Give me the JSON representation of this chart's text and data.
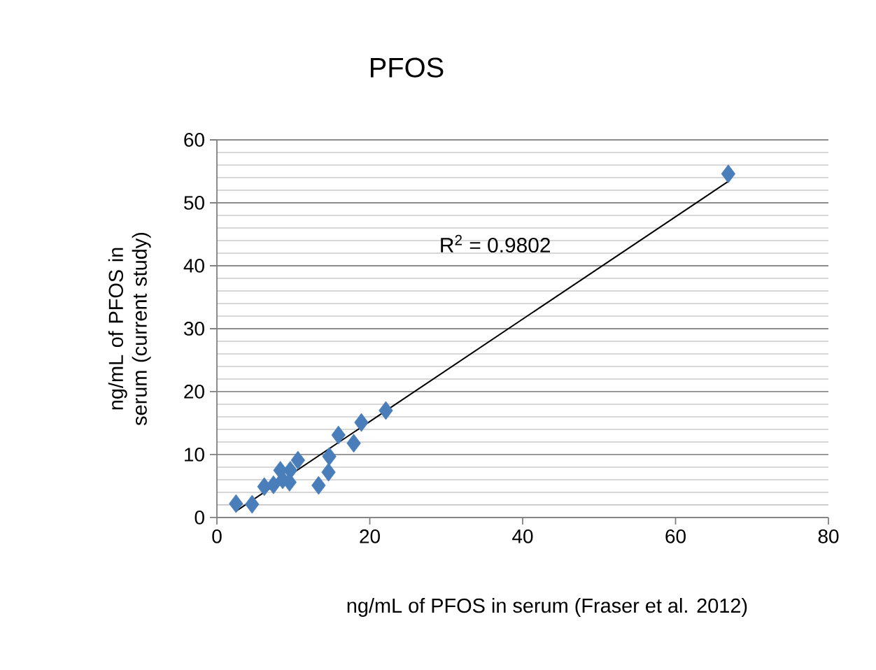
{
  "chart_data": {
    "type": "scatter",
    "title": "PFOS",
    "xlabel": "ng/mL of PFOS in serum (Fraser et al. 2012)",
    "ylabel": "ng/mL of PFOS in serum (current study)",
    "series": [
      {
        "type": "scatter",
        "color": "#4a7ebb",
        "marker": "diamond",
        "x": [
          2.5,
          4.6,
          6.2,
          7.4,
          8.3,
          8.6,
          9.5,
          9.6,
          10.6,
          13.3,
          14.6,
          14.7,
          15.9,
          17.9,
          18.9,
          22.1,
          66.9
        ],
        "values": [
          2.2,
          2.1,
          4.9,
          5.2,
          7.5,
          6.0,
          5.6,
          7.5,
          9.1,
          5.1,
          7.2,
          9.7,
          13.1,
          11.8,
          15.1,
          17.0,
          54.6
        ]
      },
      {
        "type": "line",
        "color": "#000000",
        "marker": "none",
        "x": [
          2.6,
          66.9
        ],
        "values": [
          1.1,
          53.4
        ]
      }
    ],
    "annotations": [
      "R$^{2}$ = 0.9802"
    ],
    "xlim": [
      0,
      80
    ],
    "xticks": [
      0,
      20,
      40,
      60,
      80
    ],
    "ylim": [
      0,
      60
    ],
    "yticks": [
      0,
      10,
      20,
      30,
      40,
      50,
      60
    ],
    "grid": "y"
  }
}
